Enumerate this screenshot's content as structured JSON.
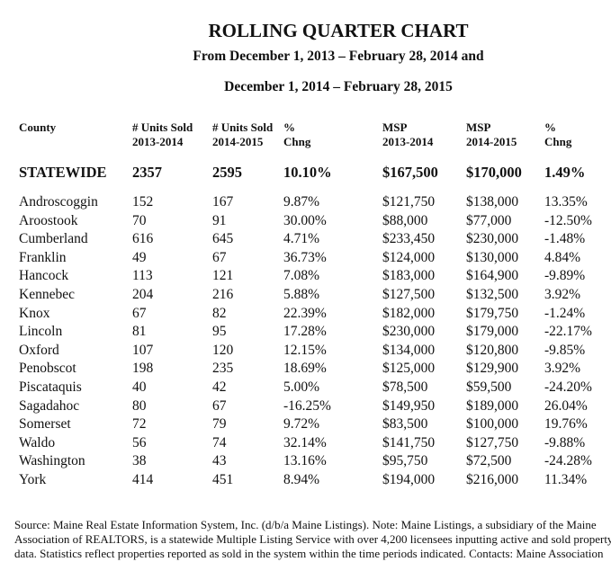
{
  "title": "ROLLING QUARTER CHART",
  "subtitle_line1": "From December 1, 2013 – February 28, 2014 and",
  "subtitle_line2": "December 1, 2014 – February 28, 2015",
  "headers": [
    [
      "County",
      ""
    ],
    [
      "# Units Sold",
      "2013-2014"
    ],
    [
      "# Units Sold",
      "2014-2015"
    ],
    [
      "%",
      "Chng"
    ],
    [
      "MSP",
      "2013-2014"
    ],
    [
      "MSP",
      "2014-2015"
    ],
    [
      "%",
      "Chng"
    ]
  ],
  "statewide": [
    "STATEWIDE",
    "2357",
    "2595",
    "10.10%",
    "$167,500",
    "$170,000",
    "1.49%"
  ],
  "rows": [
    [
      "Androscoggin",
      "152",
      "167",
      "9.87%",
      "$121,750",
      "$138,000",
      "13.35%"
    ],
    [
      "Aroostook",
      "70",
      "91",
      "30.00%",
      "$88,000",
      "$77,000",
      "-12.50%"
    ],
    [
      "Cumberland",
      "616",
      "645",
      "4.71%",
      "$233,450",
      "$230,000",
      "-1.48%"
    ],
    [
      "Franklin",
      "49",
      "67",
      "36.73%",
      "$124,000",
      "$130,000",
      "4.84%"
    ],
    [
      "Hancock",
      "113",
      "121",
      "7.08%",
      "$183,000",
      "$164,900",
      "-9.89%"
    ],
    [
      "Kennebec",
      "204",
      "216",
      "5.88%",
      "$127,500",
      "$132,500",
      "3.92%"
    ],
    [
      "Knox",
      "67",
      "82",
      "22.39%",
      "$182,000",
      "$179,750",
      "-1.24%"
    ],
    [
      "Lincoln",
      "81",
      "95",
      "17.28%",
      "$230,000",
      "$179,000",
      "-22.17%"
    ],
    [
      "Oxford",
      "107",
      "120",
      "12.15%",
      "$134,000",
      "$120,800",
      "-9.85%"
    ],
    [
      "Penobscot",
      "198",
      "235",
      "18.69%",
      "$125,000",
      "$129,900",
      "3.92%"
    ],
    [
      "Piscataquis",
      "40",
      "42",
      "5.00%",
      "$78,500",
      "$59,500",
      "-24.20%"
    ],
    [
      "Sagadahoc",
      "80",
      "67",
      "-16.25%",
      "$149,950",
      "$189,000",
      "26.04%"
    ],
    [
      "Somerset",
      "72",
      "79",
      "9.72%",
      "$83,500",
      "$100,000",
      "19.76%"
    ],
    [
      "Waldo",
      "56",
      "74",
      "32.14%",
      "$141,750",
      "$127,750",
      "-9.88%"
    ],
    [
      "Washington",
      "38",
      "43",
      "13.16%",
      "$95,750",
      "$72,500",
      "-24.28%"
    ],
    [
      "York",
      "414",
      "451",
      "8.94%",
      "$194,000",
      "$216,000",
      "11.34%"
    ]
  ],
  "footnote": [
    "Source: Maine Real Estate Information System, Inc. (d/b/a Maine Listings).  Note: Maine Listings, a subsidiary of the Maine",
    "Association of REALTORS, is a statewide Multiple Listing Service with over 4,200 licensees inputting active and sold property",
    "data.  Statistics reflect properties reported as sold in the system within the time periods indicated. Contacts: Maine Association"
  ]
}
